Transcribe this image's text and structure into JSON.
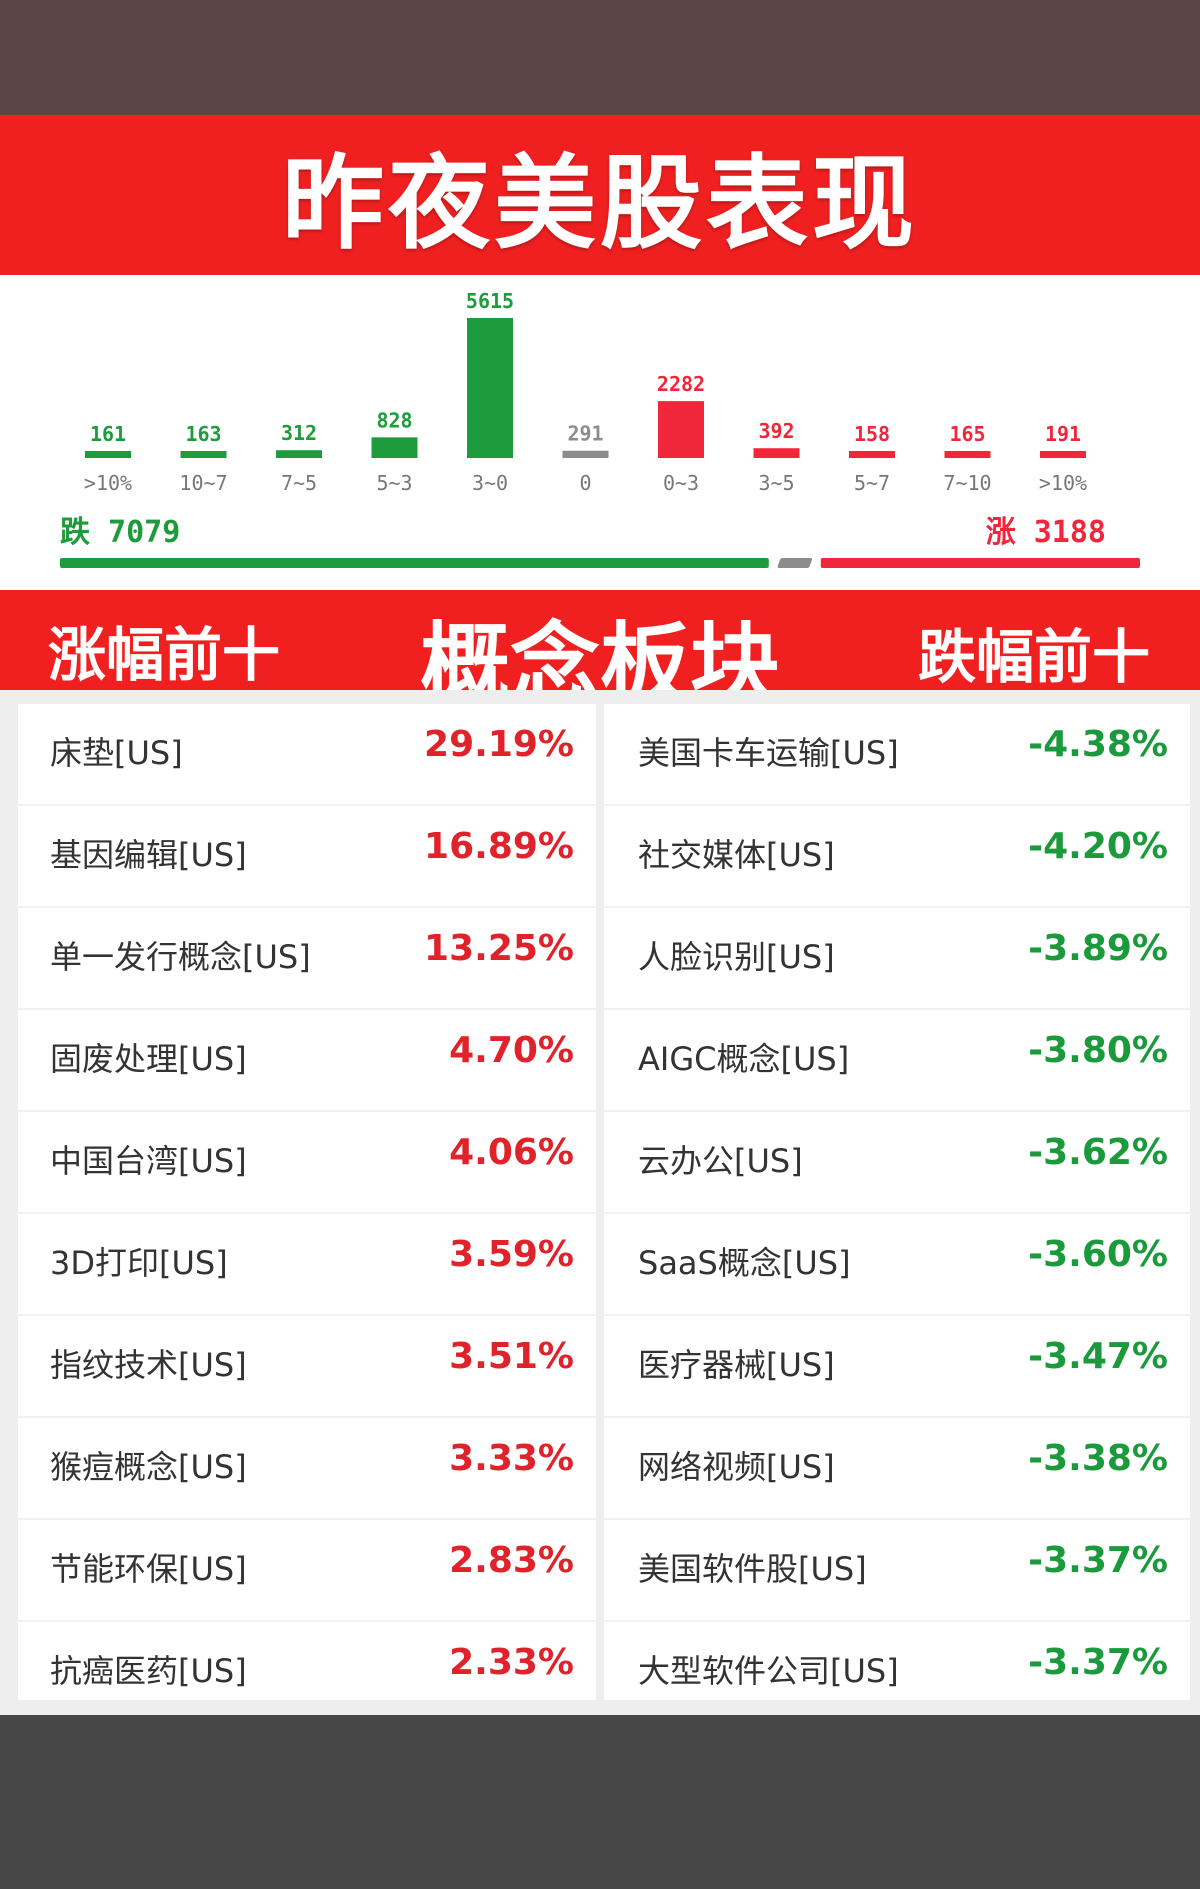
{
  "header": {
    "title": "昨夜美股表现"
  },
  "chart_data": {
    "type": "bar",
    "categories": [
      ">10%",
      "10~7",
      "7~5",
      "5~3",
      "3~0",
      "0",
      "0~3",
      "3~5",
      "5~7",
      "7~10",
      ">10%"
    ],
    "values": [
      161,
      163,
      312,
      828,
      5615,
      291,
      2282,
      392,
      158,
      165,
      191
    ],
    "bar_colors": [
      "#1e9b3c",
      "#1e9b3c",
      "#1e9b3c",
      "#1e9b3c",
      "#1e9b3c",
      "#8c8c8c",
      "#f0263a",
      "#f0263a",
      "#f0263a",
      "#f0263a",
      "#f0263a"
    ],
    "down": {
      "label": "跌 7079",
      "value": 7079,
      "color": "#1e9b3c"
    },
    "up": {
      "label": "涨 3188",
      "value": 3188,
      "color": "#f0263a"
    },
    "flat_color": "#8c8c8c"
  },
  "section": {
    "left_label": "涨幅前十",
    "center_label": "概念板块",
    "right_label": "跌幅前十"
  },
  "gainers": [
    {
      "name": "床垫[US]",
      "pct": "29.19%"
    },
    {
      "name": "基因编辑[US]",
      "pct": "16.89%"
    },
    {
      "name": "单一发行概念[US]",
      "pct": "13.25%"
    },
    {
      "name": "固废处理[US]",
      "pct": "4.70%"
    },
    {
      "name": "中国台湾[US]",
      "pct": "4.06%"
    },
    {
      "name": "3D打印[US]",
      "pct": "3.59%"
    },
    {
      "name": "指纹技术[US]",
      "pct": "3.51%"
    },
    {
      "name": "猴痘概念[US]",
      "pct": "3.33%"
    },
    {
      "name": "节能环保[US]",
      "pct": "2.83%"
    },
    {
      "name": "抗癌医药[US]",
      "pct": "2.33%"
    }
  ],
  "losers": [
    {
      "name": "美国卡车运输[US]",
      "pct": "-4.38%"
    },
    {
      "name": "社交媒体[US]",
      "pct": "-4.20%"
    },
    {
      "name": "人脸识别[US]",
      "pct": "-3.89%"
    },
    {
      "name": "AIGC概念[US]",
      "pct": "-3.80%"
    },
    {
      "name": "云办公[US]",
      "pct": "-3.62%"
    },
    {
      "name": "SaaS概念[US]",
      "pct": "-3.60%"
    },
    {
      "name": "医疗器械[US]",
      "pct": "-3.47%"
    },
    {
      "name": "网络视频[US]",
      "pct": "-3.38%"
    },
    {
      "name": "美国软件股[US]",
      "pct": "-3.37%"
    },
    {
      "name": "大型软件公司[US]",
      "pct": "-3.37%"
    }
  ]
}
